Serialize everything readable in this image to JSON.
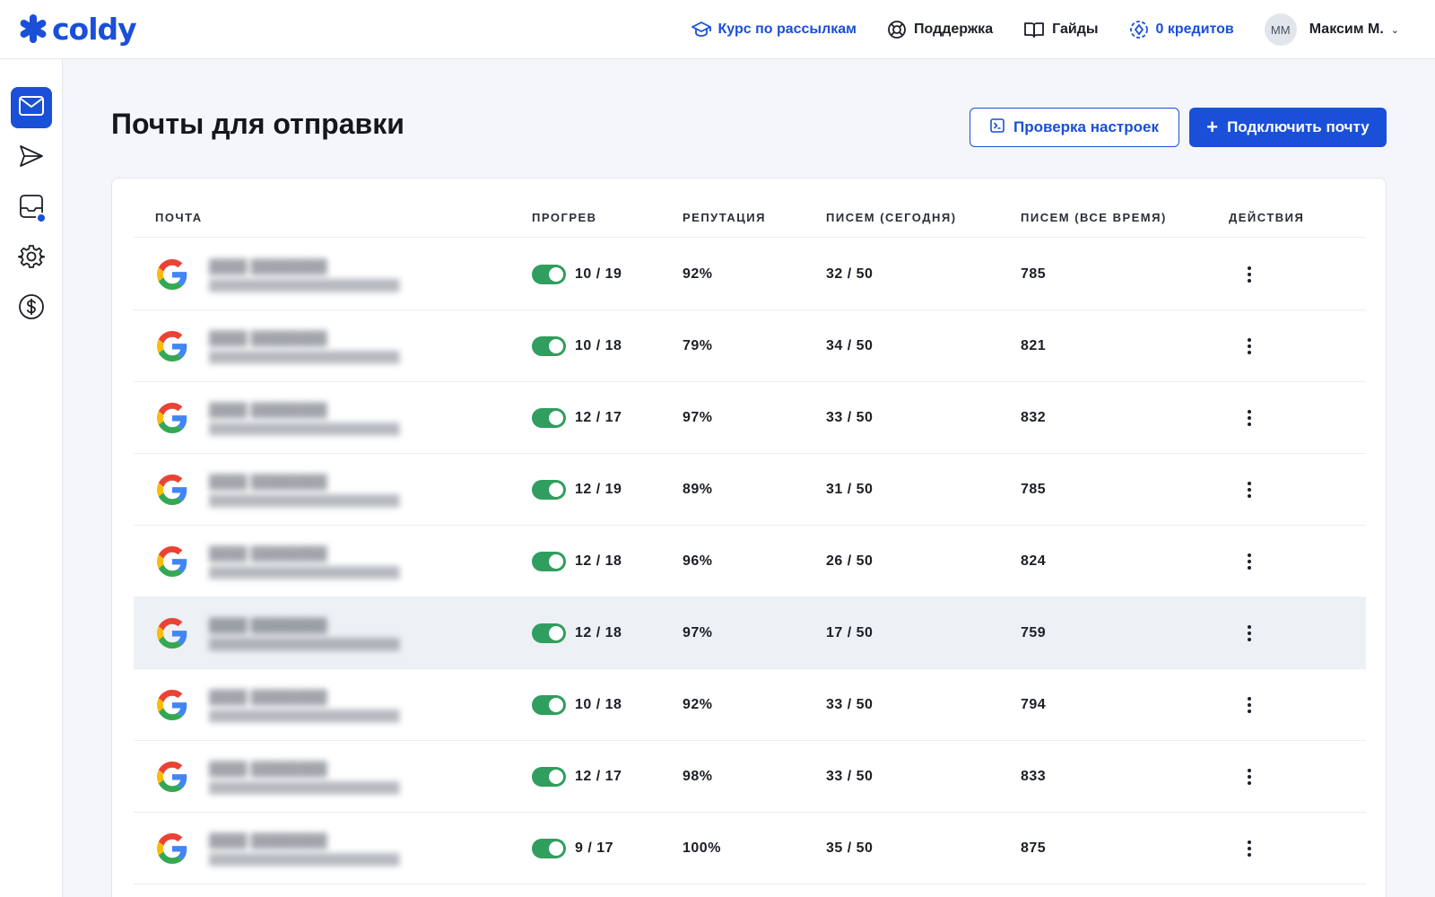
{
  "header": {
    "logo_text": "coldy",
    "nav": {
      "course": "Курс по рассылкам",
      "support": "Поддержка",
      "guides": "Гайды",
      "credits": "0 кредитов"
    },
    "user": {
      "initials": "MM",
      "name": "Максим М."
    },
    "accent_color": "#1a4fd8"
  },
  "sidebar": {
    "items": [
      {
        "icon": "mail-icon",
        "active": true
      },
      {
        "icon": "send-icon",
        "active": false
      },
      {
        "icon": "inbox-icon",
        "active": false,
        "badge": true
      },
      {
        "icon": "gear-icon",
        "active": false
      },
      {
        "icon": "dollar-icon",
        "active": false
      }
    ]
  },
  "page": {
    "title": "Почты для отправки",
    "check_button": "Проверка настроек",
    "connect_button": "Подключить почту"
  },
  "table": {
    "columns": {
      "mail": "ПОЧТА",
      "warmup": "ПРОГРЕВ",
      "reputation": "РЕПУТАЦИЯ",
      "today": "ПИСЕМ (СЕГОДНЯ)",
      "total": "ПИСЕМ (ВСЕ ВРЕМЯ)",
      "actions": "ДЕЙСТВИЯ"
    },
    "rows": [
      {
        "warmup": "10 / 19",
        "reputation": "92%",
        "today": "32 / 50",
        "total": "785",
        "warmup_on": true
      },
      {
        "warmup": "10 / 18",
        "reputation": "79%",
        "today": "34 / 50",
        "total": "821",
        "warmup_on": true
      },
      {
        "warmup": "12 / 17",
        "reputation": "97%",
        "today": "33 / 50",
        "total": "832",
        "warmup_on": true
      },
      {
        "warmup": "12 / 19",
        "reputation": "89%",
        "today": "31 / 50",
        "total": "785",
        "warmup_on": true
      },
      {
        "warmup": "12 / 18",
        "reputation": "96%",
        "today": "26 / 50",
        "total": "824",
        "warmup_on": true
      },
      {
        "warmup": "12 / 18",
        "reputation": "97%",
        "today": "17 / 50",
        "total": "759",
        "warmup_on": true,
        "highlighted": true
      },
      {
        "warmup": "10 / 18",
        "reputation": "92%",
        "today": "33 / 50",
        "total": "794",
        "warmup_on": true
      },
      {
        "warmup": "12 / 17",
        "reputation": "98%",
        "today": "33 / 50",
        "total": "833",
        "warmup_on": true
      },
      {
        "warmup": "9 / 17",
        "reputation": "100%",
        "today": "35 / 50",
        "total": "875",
        "warmup_on": true
      }
    ]
  }
}
